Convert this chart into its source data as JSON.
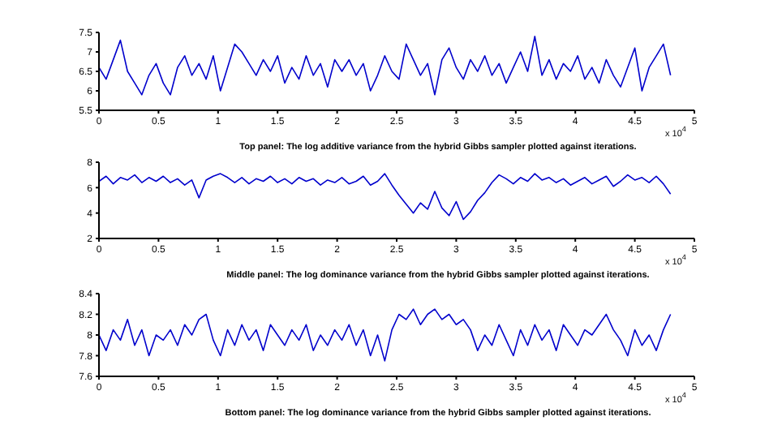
{
  "chart_data": [
    {
      "type": "line",
      "x": [
        0,
        0.06,
        0.12,
        0.18,
        0.24,
        0.3,
        0.36,
        0.42,
        0.48,
        0.54,
        0.6,
        0.66,
        0.72,
        0.78,
        0.84,
        0.9,
        0.96,
        1.02,
        1.08,
        1.14,
        1.2,
        1.26,
        1.32,
        1.38,
        1.44,
        1.5,
        1.56,
        1.62,
        1.68,
        1.74,
        1.8,
        1.86,
        1.92,
        1.98,
        2.04,
        2.1,
        2.16,
        2.22,
        2.28,
        2.34,
        2.4,
        2.46,
        2.52,
        2.58,
        2.64,
        2.7,
        2.76,
        2.82,
        2.88,
        2.94,
        3,
        3.06,
        3.12,
        3.18,
        3.24,
        3.3,
        3.36,
        3.42,
        3.48,
        3.54,
        3.6,
        3.66,
        3.72,
        3.78,
        3.84,
        3.9,
        3.96,
        4.02,
        4.08,
        4.14,
        4.2,
        4.26,
        4.32,
        4.38,
        4.44,
        4.5,
        4.56,
        4.62,
        4.68,
        4.74,
        4.8
      ],
      "series": [
        {
          "color": "#0000cc",
          "values": [
            6.6,
            6.3,
            6.8,
            7.3,
            6.5,
            6.2,
            5.9,
            6.4,
            6.7,
            6.2,
            5.9,
            6.6,
            6.9,
            6.4,
            6.7,
            6.3,
            6.9,
            6.0,
            6.6,
            7.2,
            7.0,
            6.7,
            6.4,
            6.8,
            6.5,
            6.9,
            6.2,
            6.6,
            6.3,
            6.9,
            6.4,
            6.7,
            6.1,
            6.8,
            6.5,
            6.8,
            6.4,
            6.7,
            6.0,
            6.4,
            6.9,
            6.5,
            6.3,
            7.2,
            6.8,
            6.4,
            6.7,
            5.9,
            6.8,
            7.1,
            6.6,
            6.3,
            6.8,
            6.5,
            6.9,
            6.4,
            6.7,
            6.2,
            6.6,
            7.0,
            6.5,
            7.4,
            6.4,
            6.8,
            6.3,
            6.7,
            6.5,
            6.9,
            6.3,
            6.6,
            6.2,
            6.8,
            6.4,
            6.1,
            6.6,
            7.1,
            6.0,
            6.6,
            6.9,
            7.2,
            6.4
          ]
        }
      ],
      "xlim": [
        0,
        5
      ],
      "xticks": [
        0,
        0.5,
        1,
        1.5,
        2,
        2.5,
        3,
        3.5,
        4,
        4.5,
        5
      ],
      "ylim": [
        5.5,
        7.5
      ],
      "yticks": [
        5.5,
        6,
        6.5,
        7,
        7.5
      ],
      "annotations": [
        "x 10$^{4}$",
        "Top panel: The log additive variance from the hybrid Gibbs sampler plotted against iterations."
      ]
    },
    {
      "type": "line",
      "x": [
        0,
        0.06,
        0.12,
        0.18,
        0.24,
        0.3,
        0.36,
        0.42,
        0.48,
        0.54,
        0.6,
        0.66,
        0.72,
        0.78,
        0.84,
        0.9,
        0.96,
        1.02,
        1.08,
        1.14,
        1.2,
        1.26,
        1.32,
        1.38,
        1.44,
        1.5,
        1.56,
        1.62,
        1.68,
        1.74,
        1.8,
        1.86,
        1.92,
        1.98,
        2.04,
        2.1,
        2.16,
        2.22,
        2.28,
        2.34,
        2.4,
        2.46,
        2.52,
        2.58,
        2.64,
        2.7,
        2.76,
        2.82,
        2.88,
        2.94,
        3,
        3.06,
        3.12,
        3.18,
        3.24,
        3.3,
        3.36,
        3.42,
        3.48,
        3.54,
        3.6,
        3.66,
        3.72,
        3.78,
        3.84,
        3.9,
        3.96,
        4.02,
        4.08,
        4.14,
        4.2,
        4.26,
        4.32,
        4.38,
        4.44,
        4.5,
        4.56,
        4.62,
        4.68,
        4.74,
        4.8
      ],
      "series": [
        {
          "color": "#0000cc",
          "values": [
            6.5,
            6.9,
            6.3,
            6.8,
            6.6,
            7.0,
            6.4,
            6.8,
            6.5,
            6.9,
            6.4,
            6.7,
            6.2,
            6.6,
            5.2,
            6.6,
            6.9,
            7.1,
            6.8,
            6.4,
            6.8,
            6.3,
            6.7,
            6.5,
            6.9,
            6.4,
            6.7,
            6.3,
            6.8,
            6.5,
            6.7,
            6.2,
            6.6,
            6.4,
            6.8,
            6.3,
            6.5,
            6.9,
            6.2,
            6.5,
            7.1,
            6.2,
            5.4,
            4.7,
            4.0,
            4.8,
            4.3,
            5.7,
            4.4,
            3.8,
            4.9,
            3.5,
            4.1,
            5.0,
            5.6,
            6.4,
            7.0,
            6.7,
            6.3,
            6.8,
            6.5,
            7.1,
            6.6,
            6.8,
            6.4,
            6.7,
            6.2,
            6.5,
            6.8,
            6.3,
            6.6,
            6.9,
            6.1,
            6.5,
            7.0,
            6.6,
            6.8,
            6.4,
            6.9,
            6.3,
            5.5
          ]
        }
      ],
      "xlim": [
        0,
        5
      ],
      "xticks": [
        0,
        0.5,
        1,
        1.5,
        2,
        2.5,
        3,
        3.5,
        4,
        4.5,
        5
      ],
      "ylim": [
        2,
        8
      ],
      "yticks": [
        2,
        4,
        6,
        8
      ],
      "annotations": [
        "x 10$^{4}$",
        "Middle panel: The log dominance variance from the hybrid Gibbs sampler plotted against iterations."
      ]
    },
    {
      "type": "line",
      "x": [
        0,
        0.06,
        0.12,
        0.18,
        0.24,
        0.3,
        0.36,
        0.42,
        0.48,
        0.54,
        0.6,
        0.66,
        0.72,
        0.78,
        0.84,
        0.9,
        0.96,
        1.02,
        1.08,
        1.14,
        1.2,
        1.26,
        1.32,
        1.38,
        1.44,
        1.5,
        1.56,
        1.62,
        1.68,
        1.74,
        1.8,
        1.86,
        1.92,
        1.98,
        2.04,
        2.1,
        2.16,
        2.22,
        2.28,
        2.34,
        2.4,
        2.46,
        2.52,
        2.58,
        2.64,
        2.7,
        2.76,
        2.82,
        2.88,
        2.94,
        3,
        3.06,
        3.12,
        3.18,
        3.24,
        3.3,
        3.36,
        3.42,
        3.48,
        3.54,
        3.6,
        3.66,
        3.72,
        3.78,
        3.84,
        3.9,
        3.96,
        4.02,
        4.08,
        4.14,
        4.2,
        4.26,
        4.32,
        4.38,
        4.44,
        4.5,
        4.56,
        4.62,
        4.68,
        4.74,
        4.8
      ],
      "series": [
        {
          "color": "#0000cc",
          "values": [
            8.0,
            7.85,
            8.05,
            7.95,
            8.15,
            7.9,
            8.05,
            7.8,
            8.0,
            7.95,
            8.05,
            7.9,
            8.1,
            8.0,
            8.15,
            8.2,
            7.95,
            7.8,
            8.05,
            7.9,
            8.1,
            7.95,
            8.05,
            7.85,
            8.1,
            8.0,
            7.9,
            8.05,
            7.95,
            8.1,
            7.85,
            8.0,
            7.9,
            8.05,
            7.95,
            8.1,
            7.9,
            8.05,
            7.8,
            8.0,
            7.75,
            8.05,
            8.2,
            8.15,
            8.25,
            8.1,
            8.2,
            8.25,
            8.15,
            8.2,
            8.1,
            8.15,
            8.05,
            7.85,
            8.0,
            7.9,
            8.1,
            7.95,
            7.8,
            8.05,
            7.9,
            8.1,
            7.95,
            8.05,
            7.85,
            8.1,
            8.0,
            7.9,
            8.05,
            8.0,
            8.1,
            8.2,
            8.05,
            7.95,
            7.8,
            8.05,
            7.9,
            8.0,
            7.85,
            8.05,
            8.2
          ]
        }
      ],
      "xlim": [
        0,
        5
      ],
      "xticks": [
        0,
        0.5,
        1,
        1.5,
        2,
        2.5,
        3,
        3.5,
        4,
        4.5,
        5
      ],
      "ylim": [
        7.6,
        8.4
      ],
      "yticks": [
        7.6,
        7.8,
        8,
        8.2,
        8.4
      ],
      "annotations": [
        "x 10$^{4}$",
        "Bottom panel: The log dominance variance from the hybrid Gibbs sampler plotted against iterations."
      ]
    }
  ]
}
